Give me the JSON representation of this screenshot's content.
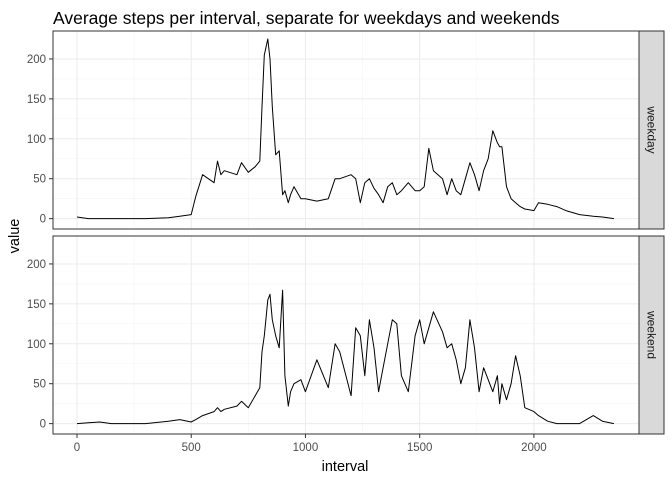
{
  "chart_data": {
    "type": "line",
    "title": "Average steps per interval, separate for weekdays and weekends",
    "xlabel": "interval",
    "ylabel": "value",
    "xlim": [
      -105,
      2460
    ],
    "ylim": [
      -13,
      235
    ],
    "x_ticks": [
      0,
      500,
      1000,
      1500,
      2000
    ],
    "y_ticks": [
      0,
      50,
      100,
      150,
      200
    ],
    "grid": true,
    "facets": [
      {
        "label": "weekday",
        "series": [
          {
            "x": [
              0,
              50,
              100,
              150,
              200,
              300,
              400,
              450,
              500,
              520,
              550,
              600,
              615,
              630,
              645,
              700,
              720,
              750,
              780,
              800,
              810,
              820,
              835,
              845,
              855,
              870,
              885,
              900,
              910,
              925,
              935,
              950,
              980,
              1000,
              1050,
              1100,
              1130,
              1150,
              1200,
              1220,
              1240,
              1260,
              1280,
              1300,
              1320,
              1340,
              1360,
              1380,
              1400,
              1420,
              1450,
              1480,
              1500,
              1520,
              1540,
              1560,
              1600,
              1620,
              1640,
              1660,
              1680,
              1700,
              1720,
              1740,
              1760,
              1780,
              1800,
              1820,
              1840,
              1850,
              1860,
              1880,
              1900,
              1920,
              1940,
              1960,
              2000,
              2020,
              2060,
              2100,
              2140,
              2200,
              2260,
              2300,
              2350
            ],
            "values": [
              2,
              0,
              0,
              0,
              0,
              0,
              1,
              3,
              5,
              28,
              55,
              45,
              72,
              55,
              60,
              55,
              70,
              58,
              65,
              72,
              140,
              205,
              225,
              200,
              140,
              80,
              85,
              30,
              35,
              20,
              30,
              40,
              25,
              25,
              22,
              25,
              50,
              50,
              55,
              50,
              20,
              45,
              50,
              38,
              30,
              20,
              40,
              45,
              30,
              35,
              45,
              35,
              35,
              40,
              88,
              60,
              50,
              30,
              50,
              35,
              30,
              50,
              70,
              55,
              35,
              60,
              75,
              110,
              95,
              90,
              90,
              40,
              25,
              20,
              15,
              12,
              10,
              20,
              18,
              15,
              10,
              5,
              3,
              2,
              0
            ]
          }
        ]
      },
      {
        "label": "weekend",
        "series": [
          {
            "x": [
              0,
              50,
              100,
              150,
              200,
              300,
              400,
              450,
              500,
              520,
              550,
              600,
              615,
              630,
              645,
              700,
              720,
              750,
              780,
              800,
              810,
              820,
              835,
              845,
              855,
              870,
              885,
              900,
              910,
              925,
              935,
              950,
              980,
              1000,
              1050,
              1100,
              1130,
              1150,
              1200,
              1220,
              1240,
              1260,
              1280,
              1300,
              1320,
              1340,
              1360,
              1380,
              1400,
              1420,
              1450,
              1480,
              1500,
              1520,
              1540,
              1560,
              1600,
              1620,
              1640,
              1660,
              1680,
              1700,
              1720,
              1740,
              1760,
              1780,
              1800,
              1820,
              1840,
              1850,
              1860,
              1880,
              1900,
              1920,
              1940,
              1960,
              2000,
              2020,
              2060,
              2100,
              2140,
              2200,
              2260,
              2300,
              2350
            ],
            "values": [
              0,
              1,
              2,
              0,
              0,
              0,
              3,
              5,
              2,
              5,
              10,
              15,
              20,
              15,
              18,
              22,
              28,
              20,
              35,
              45,
              90,
              110,
              155,
              162,
              130,
              110,
              95,
              167,
              60,
              22,
              40,
              50,
              55,
              40,
              80,
              45,
              100,
              90,
              35,
              120,
              110,
              60,
              130,
              95,
              40,
              70,
              100,
              130,
              125,
              60,
              40,
              110,
              130,
              100,
              120,
              140,
              115,
              95,
              100,
              80,
              50,
              70,
              130,
              95,
              40,
              70,
              55,
              40,
              60,
              25,
              50,
              30,
              50,
              85,
              60,
              20,
              15,
              10,
              3,
              0,
              0,
              0,
              10,
              3,
              0
            ]
          }
        ]
      }
    ]
  }
}
